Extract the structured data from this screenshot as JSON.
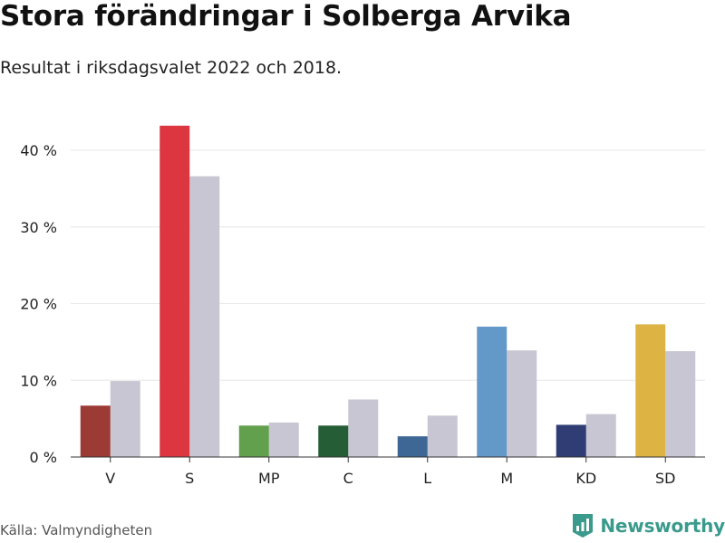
{
  "title": "Stora förändringar i Solberga Arvika",
  "subtitle": "Resultat i riksdagsvalet 2022 och 2018.",
  "source": "Källa: Valmyndigheten",
  "brand": "Newsworthy",
  "colors": {
    "previous": "#c8c6d2",
    "brand": "#3a9a8c",
    "grid": "#e6e6e6"
  },
  "chart_data": {
    "type": "bar",
    "categories": [
      "V",
      "S",
      "MP",
      "C",
      "L",
      "M",
      "KD",
      "SD"
    ],
    "series": [
      {
        "values": [
          6.7,
          43.2,
          4.1,
          4.1,
          2.7,
          17.0,
          4.2,
          17.3
        ],
        "colors": [
          "#9c3a36",
          "#dc3640",
          "#63a04e",
          "#255e36",
          "#3e6796",
          "#6399c9",
          "#2f3d74",
          "#ddb444"
        ]
      },
      {
        "values": [
          9.9,
          36.6,
          4.5,
          7.5,
          5.4,
          13.9,
          5.6,
          13.8
        ]
      }
    ],
    "yticks": [
      {
        "value": 0,
        "label": "0 %"
      },
      {
        "value": 10,
        "label": "10 %"
      },
      {
        "value": 20,
        "label": "20 %"
      },
      {
        "value": 30,
        "label": "30 %"
      },
      {
        "value": 40,
        "label": "40 %"
      }
    ],
    "ylim": [
      0,
      45
    ],
    "grid": true
  }
}
